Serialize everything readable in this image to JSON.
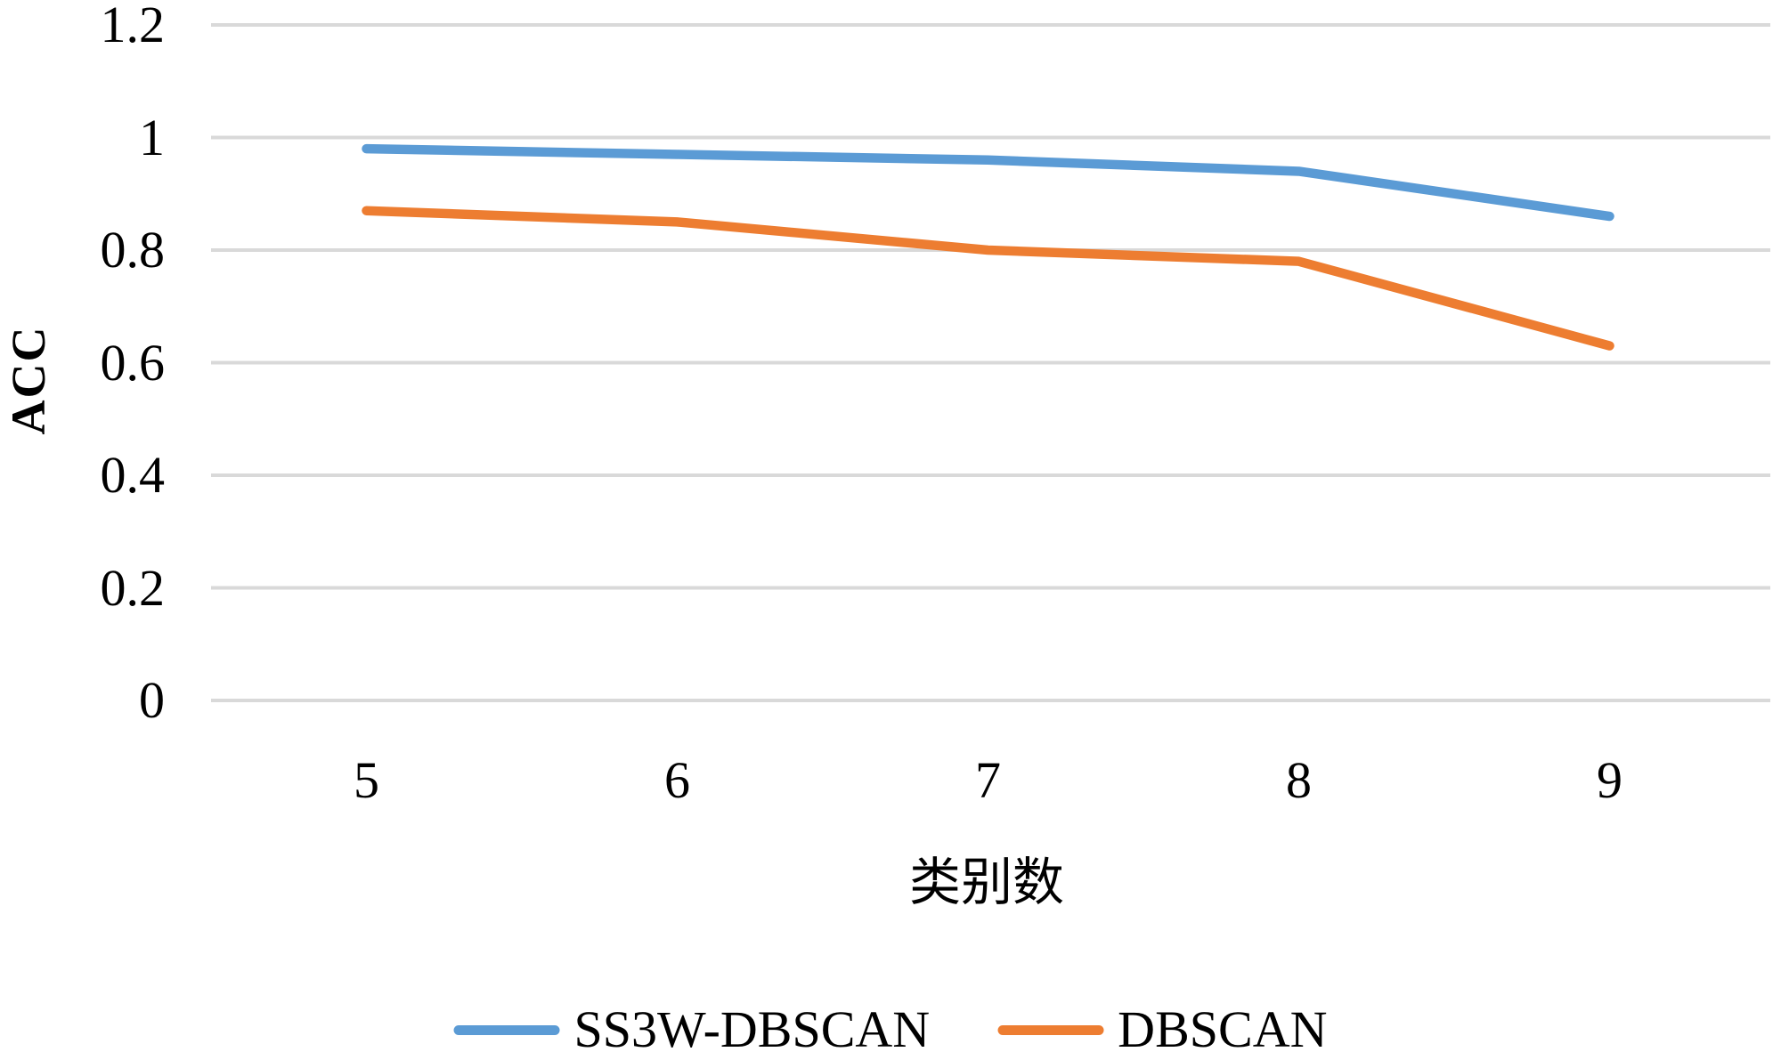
{
  "figure": {
    "background": "#ffffff"
  },
  "colors": {
    "gridline": "#d9d9d9",
    "text": "#000000",
    "series1": "#5b9bd5",
    "series2": "#ed7d31"
  },
  "chart_data": {
    "type": "line",
    "title": "",
    "xlabel": "类别数",
    "ylabel": "ACC",
    "categories": [
      "5",
      "6",
      "7",
      "8",
      "9"
    ],
    "series": [
      {
        "name": "SS3W-DBSCAN",
        "color": "#5b9bd5",
        "values": [
          0.98,
          0.97,
          0.96,
          0.94,
          0.86
        ]
      },
      {
        "name": "DBSCAN",
        "color": "#ed7d31",
        "values": [
          0.87,
          0.85,
          0.8,
          0.78,
          0.63
        ]
      }
    ],
    "ylim": [
      0,
      1.2
    ],
    "y_ticks": [
      0,
      0.2,
      0.4,
      0.6,
      0.8,
      1,
      1.2
    ],
    "y_tick_labels": [
      "0",
      "0.2",
      "0.4",
      "0.6",
      "0.8",
      "1",
      "1.2"
    ],
    "grid": "horizontal",
    "legend_position": "bottom"
  }
}
